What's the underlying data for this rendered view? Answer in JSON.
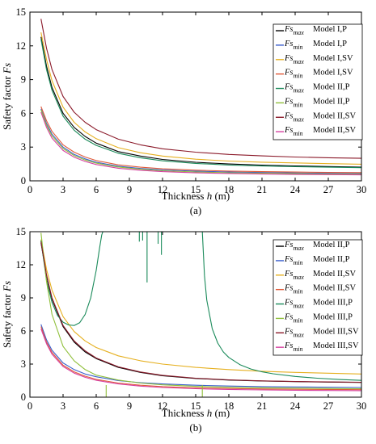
{
  "chart_data": [
    {
      "type": "line",
      "panel_label": "(a)",
      "xlabel": "Thickness h (m)",
      "ylabel": "Safety factor Fs",
      "xlim": [
        0,
        30
      ],
      "ylim": [
        0,
        15
      ],
      "xticks": [
        0,
        3,
        6,
        9,
        12,
        15,
        18,
        21,
        24,
        27,
        30
      ],
      "yticks": [
        0,
        3,
        6,
        9,
        12,
        15
      ],
      "grid": false,
      "legend_position": "top-right",
      "series": [
        {
          "name": "Fsmax Model I,P",
          "sym": "max",
          "model": "Model I,P",
          "color": "#000000",
          "x": [
            1,
            1.5,
            2,
            3,
            4,
            5,
            6,
            8,
            10,
            12,
            15,
            18,
            21,
            24,
            27,
            30
          ],
          "y": [
            12.8,
            10.2,
            8.3,
            6.0,
            4.75,
            3.95,
            3.35,
            2.6,
            2.2,
            1.9,
            1.65,
            1.5,
            1.4,
            1.33,
            1.27,
            1.22
          ]
        },
        {
          "name": "Fsmin Model I,P",
          "sym": "min",
          "model": "Model I,P",
          "color": "#3b5fcc",
          "x": [
            1,
            1.5,
            2,
            3,
            4,
            5,
            6,
            8,
            10,
            12,
            15,
            18,
            21,
            24,
            27,
            30
          ],
          "y": [
            6.4,
            5.1,
            4.15,
            3.0,
            2.35,
            1.95,
            1.65,
            1.3,
            1.1,
            0.97,
            0.86,
            0.79,
            0.74,
            0.7,
            0.67,
            0.65
          ]
        },
        {
          "name": "Fsmax Model I,SV",
          "sym": "max",
          "model": "Model I,SV",
          "color": "#e6b020",
          "x": [
            1,
            1.5,
            2,
            3,
            4,
            5,
            6,
            8,
            10,
            12,
            15,
            18,
            21,
            24,
            27,
            30
          ],
          "y": [
            13.2,
            10.8,
            8.9,
            6.55,
            5.2,
            4.35,
            3.75,
            2.95,
            2.5,
            2.2,
            1.92,
            1.76,
            1.66,
            1.59,
            1.53,
            1.48
          ]
        },
        {
          "name": "Fsmin Model I,SV",
          "sym": "min",
          "model": "Model I,SV",
          "color": "#e05a3a",
          "x": [
            1,
            1.5,
            2,
            3,
            4,
            5,
            6,
            8,
            10,
            12,
            15,
            18,
            21,
            24,
            27,
            30
          ],
          "y": [
            6.6,
            5.35,
            4.4,
            3.2,
            2.55,
            2.12,
            1.8,
            1.42,
            1.21,
            1.07,
            0.95,
            0.87,
            0.82,
            0.78,
            0.75,
            0.73
          ]
        },
        {
          "name": "Fsmax Model II,P",
          "sym": "max",
          "model": "Model II,P",
          "color": "#1a8a5a",
          "x": [
            1,
            1.5,
            2,
            3,
            4,
            5,
            6,
            8,
            10,
            12,
            15,
            18,
            21,
            24,
            27,
            30
          ],
          "y": [
            12.6,
            9.9,
            8.05,
            5.75,
            4.5,
            3.7,
            3.15,
            2.45,
            2.05,
            1.78,
            1.55,
            1.41,
            1.32,
            1.26,
            1.21,
            1.17
          ]
        },
        {
          "name": "Fsmin Model II,P",
          "sym": "min",
          "model": "Model II,P",
          "color": "#8fbf3a",
          "x": [
            1,
            1.5,
            2,
            3,
            4,
            5,
            6,
            8,
            10,
            12,
            15,
            18,
            21,
            24,
            27,
            30
          ],
          "y": [
            6.3,
            4.95,
            4.0,
            2.87,
            2.25,
            1.85,
            1.57,
            1.23,
            1.03,
            0.9,
            0.79,
            0.72,
            0.68,
            0.64,
            0.61,
            0.59
          ]
        },
        {
          "name": "Fsmax Model II,SV",
          "sym": "max",
          "model": "Model II,SV",
          "color": "#8b1a2a",
          "x": [
            1,
            1.5,
            2,
            3,
            4,
            5,
            6,
            8,
            10,
            12,
            15,
            18,
            21,
            24,
            27,
            30
          ],
          "y": [
            14.4,
            11.8,
            9.9,
            7.5,
            6.1,
            5.2,
            4.55,
            3.7,
            3.2,
            2.85,
            2.55,
            2.35,
            2.22,
            2.12,
            2.05,
            2.0
          ]
        },
        {
          "name": "Fsmin Model II,SV",
          "sym": "min",
          "model": "Model II,SV",
          "color": "#d63fa0",
          "x": [
            1,
            1.5,
            2,
            3,
            4,
            5,
            6,
            8,
            10,
            12,
            15,
            18,
            21,
            24,
            27,
            30
          ],
          "y": [
            6.1,
            4.75,
            3.8,
            2.7,
            2.1,
            1.72,
            1.45,
            1.12,
            0.94,
            0.82,
            0.71,
            0.65,
            0.6,
            0.57,
            0.55,
            0.53
          ]
        }
      ]
    },
    {
      "type": "line",
      "panel_label": "(b)",
      "xlabel": "Thickness h (m)",
      "ylabel": "Safety factor Fs",
      "xlim": [
        0,
        30
      ],
      "ylim": [
        0,
        15
      ],
      "xticks": [
        0,
        3,
        6,
        9,
        12,
        15,
        18,
        21,
        24,
        27,
        30
      ],
      "yticks": [
        0,
        3,
        6,
        9,
        12,
        15
      ],
      "grid": false,
      "legend_position": "right",
      "series": [
        {
          "name": "Fsmax Model II,P",
          "sym": "max",
          "model": "Model II,P",
          "color": "#000000",
          "x": [
            1,
            1.5,
            2,
            3,
            4,
            5,
            6,
            8,
            10,
            12,
            15,
            18,
            21,
            24,
            27,
            30
          ],
          "y": [
            14.0,
            11.0,
            8.9,
            6.4,
            5.0,
            4.1,
            3.5,
            2.7,
            2.25,
            1.95,
            1.7,
            1.55,
            1.47,
            1.41,
            1.37,
            1.34
          ]
        },
        {
          "name": "Fsmin Model II,P",
          "sym": "min",
          "model": "Model II,P",
          "color": "#3b5fcc",
          "x": [
            1,
            1.5,
            2,
            3,
            4,
            5,
            6,
            8,
            10,
            12,
            15,
            18,
            21,
            24,
            27,
            30
          ],
          "y": [
            6.6,
            5.2,
            4.25,
            3.1,
            2.5,
            2.1,
            1.85,
            1.5,
            1.32,
            1.2,
            1.08,
            1.01,
            0.96,
            0.93,
            0.9,
            0.88
          ]
        },
        {
          "name": "Fsmax Model II,SV",
          "sym": "max",
          "model": "Model II,SV",
          "color": "#e6b020",
          "x": [
            1,
            1.5,
            2,
            3,
            4,
            5,
            6,
            8,
            10,
            12,
            15,
            18,
            21,
            24,
            27,
            30
          ],
          "y": [
            14.3,
            11.6,
            9.7,
            7.3,
            5.95,
            5.1,
            4.5,
            3.75,
            3.3,
            3.0,
            2.7,
            2.5,
            2.35,
            2.25,
            2.17,
            2.1
          ]
        },
        {
          "name": "Fsmin Model II,SV",
          "sym": "min",
          "model": "Model II,SV",
          "color": "#e05a3a",
          "x": [
            1,
            1.5,
            2,
            3,
            4,
            5,
            6,
            8,
            10,
            12,
            15,
            18,
            21,
            24,
            27,
            30
          ],
          "y": [
            6.4,
            5.0,
            4.05,
            2.9,
            2.3,
            1.9,
            1.62,
            1.28,
            1.08,
            0.96,
            0.85,
            0.79,
            0.75,
            0.72,
            0.7,
            0.68
          ]
        },
        {
          "name": "Fsmax Model III,P",
          "sym": "max",
          "model": "Model III,P",
          "color": "#1a8a5a",
          "x": [
            1,
            1.5,
            2,
            2.5,
            3,
            3.5,
            4,
            4.5,
            5,
            5.5,
            6,
            6.3,
            6.5,
            6.6,
            15.6,
            15.8,
            16,
            16.5,
            17,
            17.5,
            18,
            19,
            20,
            21,
            22,
            24,
            26,
            28,
            30
          ],
          "y": [
            14.2,
            10.6,
            8.6,
            7.4,
            6.8,
            6.55,
            6.5,
            6.75,
            7.5,
            9.0,
            11.5,
            13.5,
            14.7,
            15.0,
            15.0,
            11.0,
            8.8,
            6.2,
            4.9,
            4.1,
            3.6,
            2.95,
            2.55,
            2.3,
            2.12,
            1.88,
            1.72,
            1.6,
            1.52
          ]
        },
        {
          "name": "Fsmin Model III,P",
          "sym": "min",
          "model": "Model III,P",
          "color": "#8fbf3a",
          "x": [
            1,
            1.5,
            2,
            3,
            4,
            5,
            6,
            8,
            10,
            12,
            15,
            18,
            21,
            24,
            27,
            30
          ],
          "y": [
            14.9,
            10.5,
            7.5,
            4.6,
            3.3,
            2.5,
            2.0,
            1.55,
            1.28,
            1.12,
            0.98,
            0.9,
            0.85,
            0.82,
            0.79,
            0.77
          ]
        },
        {
          "name": "Fsmax Model III,SV",
          "sym": "max",
          "model": "Model III,SV",
          "color": "#8b1a2a",
          "x": [
            1,
            1.5,
            2,
            3,
            4,
            5,
            6,
            8,
            10,
            12,
            15,
            18,
            21,
            24,
            27,
            30
          ],
          "y": [
            14.1,
            11.1,
            9.0,
            6.5,
            5.1,
            4.2,
            3.55,
            2.75,
            2.28,
            1.98,
            1.72,
            1.57,
            1.48,
            1.42,
            1.38,
            1.35
          ]
        },
        {
          "name": "Fsmin Model III,SV",
          "sym": "min",
          "model": "Model III,SV",
          "color": "#d63fa0",
          "x": [
            1,
            1.5,
            2,
            3,
            4,
            5,
            6,
            8,
            10,
            12,
            15,
            18,
            21,
            24,
            27,
            30
          ],
          "y": [
            6.2,
            4.85,
            3.9,
            2.78,
            2.18,
            1.8,
            1.53,
            1.2,
            1.0,
            0.88,
            0.77,
            0.7,
            0.66,
            0.63,
            0.61,
            0.59
          ]
        }
      ],
      "spikes": [
        {
          "color": "#1a8a5a",
          "x": [
            9.9,
            10.2,
            10.6,
            11.6,
            11.9
          ],
          "y_low": [
            14.1,
            14.2,
            10.4,
            13.9,
            12.9
          ],
          "y_high": 15
        },
        {
          "color": "#8fbf3a",
          "x": [
            6.9,
            15.6
          ],
          "y_low": [
            0,
            0
          ],
          "y_high": 1.1
        }
      ]
    }
  ]
}
